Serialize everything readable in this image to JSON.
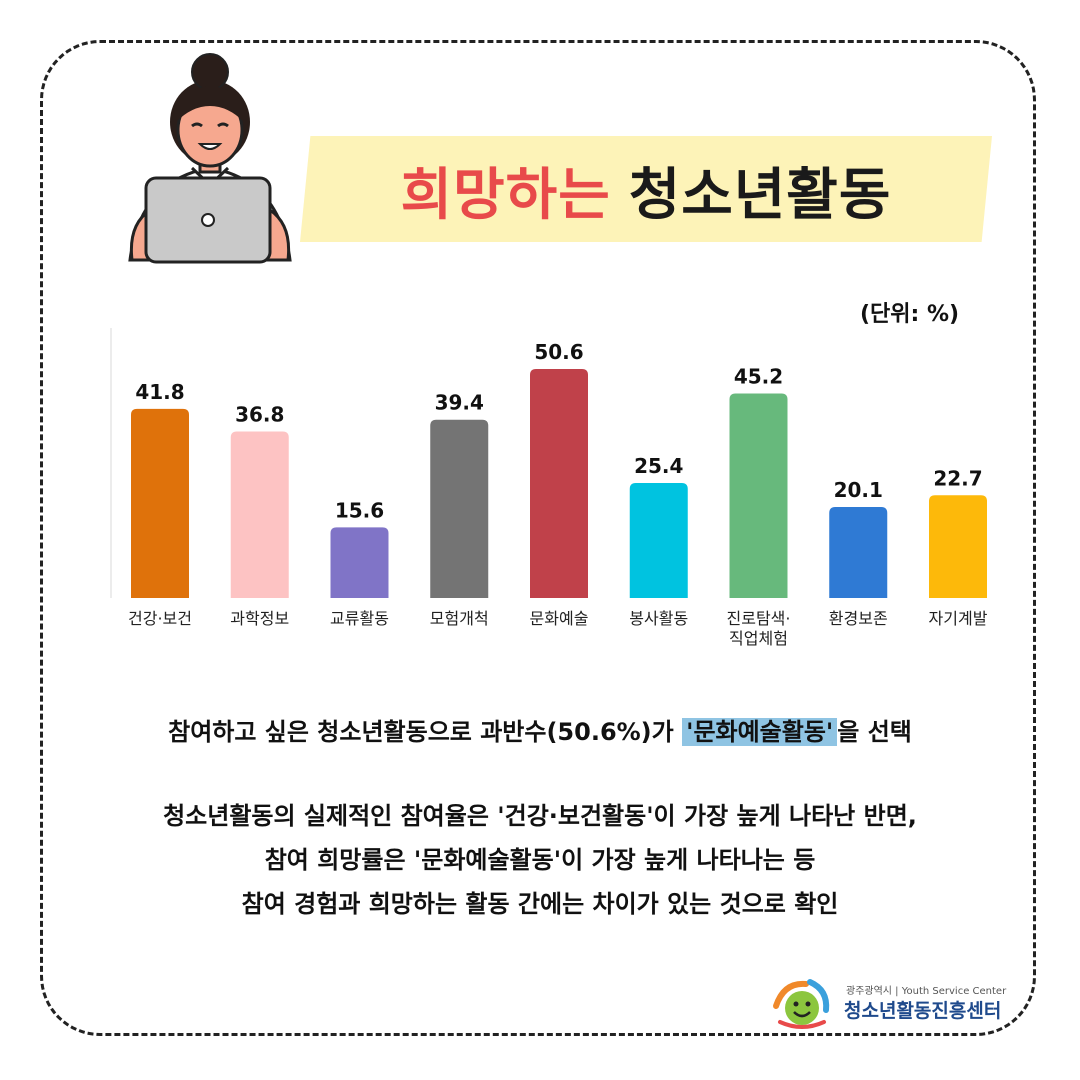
{
  "title": {
    "highlight": "희망하는",
    "main": "청소년활동"
  },
  "unit_label": "(단위: %)",
  "chart_data": {
    "type": "bar",
    "categories": [
      "건강·보건",
      "과학정보",
      "교류활동",
      "모험개척",
      "문화예술",
      "봉사활동",
      "진로탐색·\n직업체험",
      "환경보존",
      "자기계발"
    ],
    "values": [
      41.8,
      36.8,
      15.6,
      39.4,
      50.6,
      25.4,
      45.2,
      20.1,
      22.7
    ],
    "colors": [
      "#df720b",
      "#fdc3c3",
      "#8074c7",
      "#747474",
      "#c0414a",
      "#00c3e0",
      "#67b97c",
      "#2f7ad4",
      "#fdb90a"
    ],
    "unit": "%",
    "title": "",
    "xlabel": "",
    "ylabel": "",
    "ylim": [
      0,
      50.6
    ],
    "grid": false,
    "legend": "none"
  },
  "summary": {
    "line1_before": "참여하고 싶은 청소년활동으로 과반수(50.6%)가 ",
    "line1_mark": "'문화예술활동'",
    "line1_after": "을 선택",
    "line2": "청소년활동의 실제적인 참여율은 '건강·보건활동'이 가장 높게 나타난 반면,",
    "line3": "참여 희망률은 '문화예술활동'이 가장 높게 나타나는 등",
    "line4": "참여 경험과 희망하는 활동 간에는 차이가 있는 것으로 확인"
  },
  "logo": {
    "top": "광주광역시 | Youth Service Center",
    "main": "청소년활동진흥센터"
  }
}
